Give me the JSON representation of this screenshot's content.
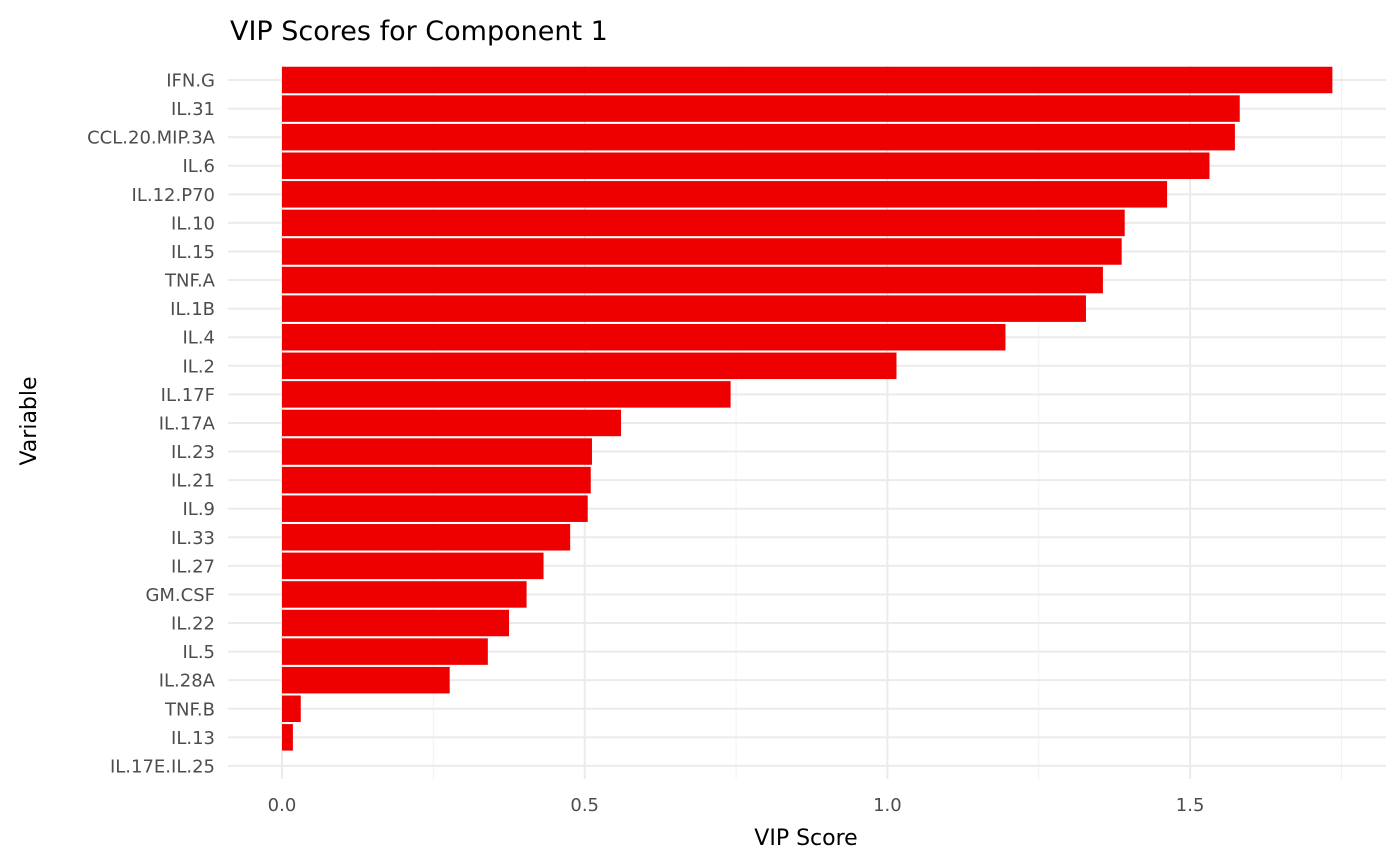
{
  "chart_data": {
    "type": "bar",
    "orientation": "horizontal",
    "title": "VIP Scores for Component 1",
    "xlabel": "VIP Score",
    "ylabel": "Variable",
    "xlim": [
      -0.09,
      1.82
    ],
    "xticks": [
      0.0,
      0.5,
      1.0,
      1.5
    ],
    "xtick_labels": [
      "0.0",
      "0.5",
      "1.0",
      "1.5"
    ],
    "grid": true,
    "legend": "none",
    "bar_color": "#ee0000",
    "categories": [
      "IFN.G",
      "IL.31",
      "CCL.20.MIP.3A",
      "IL.6",
      "IL.12.P70",
      "IL.10",
      "IL.15",
      "TNF.A",
      "IL.1B",
      "IL.4",
      "IL.2",
      "IL.17F",
      "IL.17A",
      "IL.23",
      "IL.21",
      "IL.9",
      "IL.33",
      "IL.27",
      "GM.CSF",
      "IL.22",
      "IL.5",
      "IL.28A",
      "TNF.B",
      "IL.13",
      "IL.17E.IL.25"
    ],
    "values": [
      1.735,
      1.582,
      1.574,
      1.532,
      1.462,
      1.392,
      1.387,
      1.356,
      1.328,
      1.195,
      1.015,
      0.741,
      0.56,
      0.512,
      0.51,
      0.505,
      0.476,
      0.432,
      0.404,
      0.375,
      0.34,
      0.277,
      0.031,
      0.018,
      0.0
    ]
  }
}
